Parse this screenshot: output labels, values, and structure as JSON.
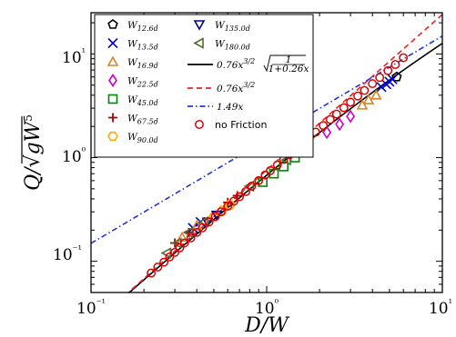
{
  "chart_data": {
    "type": "scatter",
    "xscale": "log",
    "yscale": "log",
    "xlim": [
      0.1,
      10
    ],
    "ylim": [
      0.05,
      25
    ],
    "xlabel": "D/W",
    "ylabel": "Q/√(gW⁵)",
    "x_tick_labels": [
      "10⁻¹",
      "10⁰",
      "10¹"
    ],
    "y_tick_labels": [
      "10⁻¹",
      "10⁰",
      "10¹"
    ],
    "x_ticks": [
      0.1,
      1,
      10
    ],
    "y_ticks": [
      0.1,
      1,
      10
    ],
    "legend_position": "top-left",
    "series": [
      {
        "name": "W_{12.6d}",
        "label": "W",
        "sub": "12.6d",
        "marker": "pentagon",
        "color": "#000000",
        "x": [
          5.5
        ],
        "y": [
          6.0
        ]
      },
      {
        "name": "W_{13.5d}",
        "label": "W",
        "sub": "13.5d",
        "marker": "x",
        "color": "#0000cc",
        "x": [
          0.38,
          0.42,
          4.5,
          4.8,
          5.0,
          5.2
        ],
        "y": [
          0.21,
          0.24,
          4.8,
          5.1,
          5.4,
          5.7
        ]
      },
      {
        "name": "W_{16.9d}",
        "label": "W",
        "sub": "16.9d",
        "marker": "triangle-up",
        "color": "#d9822b",
        "x": [
          0.33,
          0.4,
          3.5,
          3.8,
          4.2
        ],
        "y": [
          0.17,
          0.22,
          3.2,
          3.6,
          4.0
        ]
      },
      {
        "name": "W_{22.5d}",
        "label": "W",
        "sub": "22.5d",
        "marker": "diamond",
        "color": "#cc00cc",
        "x": [
          2.2,
          2.6,
          3.0
        ],
        "y": [
          1.75,
          2.1,
          2.5
        ]
      },
      {
        "name": "W_{45.0d}",
        "label": "W",
        "sub": "45.0d",
        "marker": "square",
        "color": "#008800",
        "x": [
          0.95,
          1.1,
          1.25,
          1.45
        ],
        "y": [
          0.58,
          0.7,
          0.82,
          1.0
        ]
      },
      {
        "name": "W_{67.5d}",
        "label": "W",
        "sub": "67.5d",
        "marker": "plus",
        "color": "#aa0000",
        "x": [
          0.3,
          0.36,
          0.6,
          0.68
        ],
        "y": [
          0.15,
          0.19,
          0.37,
          0.43
        ]
      },
      {
        "name": "W_{90.0d}",
        "label": "W",
        "sub": "90.0d",
        "marker": "hexagon",
        "color": "#ffaa00",
        "x": [
          0.5,
          0.56,
          0.62
        ],
        "y": [
          0.27,
          0.31,
          0.35
        ]
      },
      {
        "name": "W_{135.0d}",
        "label": "W",
        "sub": "135.0d",
        "marker": "triangle-down",
        "color": "#000088",
        "x": [
          0.46,
          0.52
        ],
        "y": [
          0.24,
          0.28
        ]
      },
      {
        "name": "W_{180.0d}",
        "label": "W",
        "sub": "180.0d",
        "marker": "triangle-left",
        "color": "#556b2f",
        "x": [
          0.27,
          0.31,
          0.36,
          0.44,
          0.8,
          1.3
        ],
        "y": [
          0.12,
          0.15,
          0.19,
          0.24,
          0.53,
          0.95
        ]
      },
      {
        "name": "no Friction",
        "label": "no Friction",
        "marker": "circle-open",
        "color": "#dd0000",
        "x": [
          0.22,
          0.24,
          0.26,
          0.28,
          0.3,
          0.32,
          0.34,
          0.37,
          0.4,
          0.43,
          0.47,
          0.51,
          0.55,
          0.6,
          0.65,
          0.7,
          0.76,
          0.82,
          0.9,
          0.98,
          1.05,
          1.15,
          1.25,
          1.35,
          1.5,
          1.6,
          1.75,
          1.9,
          2.1,
          2.3,
          2.5,
          2.75,
          3.0,
          3.3,
          3.6,
          4.0,
          4.4,
          4.9,
          5.4,
          6.0
        ],
        "y": [
          0.077,
          0.088,
          0.098,
          0.11,
          0.122,
          0.135,
          0.15,
          0.168,
          0.19,
          0.21,
          0.24,
          0.27,
          0.3,
          0.34,
          0.38,
          0.42,
          0.47,
          0.53,
          0.6,
          0.68,
          0.75,
          0.85,
          0.96,
          1.07,
          1.24,
          1.37,
          1.56,
          1.76,
          2.04,
          2.33,
          2.63,
          3.03,
          3.43,
          3.93,
          4.45,
          5.17,
          5.93,
          6.9,
          7.9,
          9.2
        ]
      }
    ],
    "lines": [
      {
        "name": "0.76x^{3/2} sqrt(1/(1+0.26x))",
        "style": "solid",
        "color": "#000000",
        "formula": "fit_friction"
      },
      {
        "name": "0.76x^{3/2}",
        "style": "dashed",
        "color": "#ee2222",
        "formula": "power"
      },
      {
        "name": "1.49x",
        "style": "dashdot",
        "color": "#2233dd",
        "formula": "linear"
      }
    ]
  },
  "legend": {
    "col1": [
      {
        "label": "W",
        "sub": "12.6d"
      },
      {
        "label": "W",
        "sub": "13.5d"
      },
      {
        "label": "W",
        "sub": "16.9d"
      },
      {
        "label": "W",
        "sub": "22.5d"
      },
      {
        "label": "W",
        "sub": "45.0d"
      },
      {
        "label": "W",
        "sub": "67.5d"
      },
      {
        "label": "W",
        "sub": "90.0d"
      }
    ],
    "col2_markers": [
      {
        "label": "W",
        "sub": "135.0d"
      },
      {
        "label": "W",
        "sub": "180.0d"
      }
    ],
    "lines": [
      {
        "main": "0.76x",
        "sup": "3/2",
        "sqrt_num": "1",
        "sqrt_den": "1+0.26x"
      },
      {
        "main": "0.76x",
        "sup": "3/2"
      },
      {
        "main": "1.49x"
      }
    ],
    "no_friction": "no Friction"
  }
}
